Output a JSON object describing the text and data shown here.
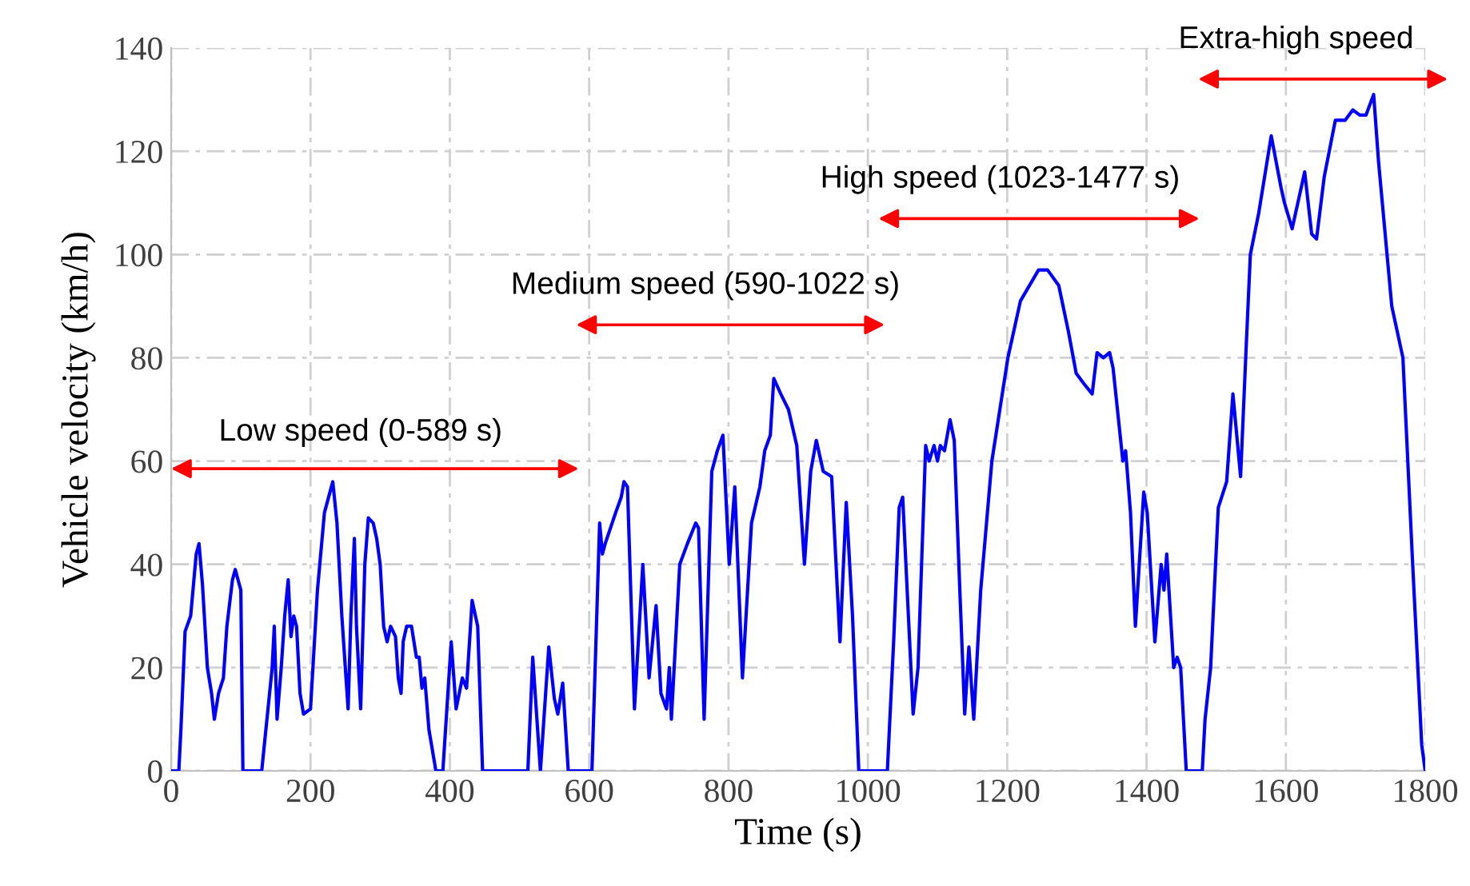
{
  "chart_data": {
    "type": "line",
    "xlabel": "Time (s)",
    "ylabel": "Vehicle velocity (km/h)",
    "xlim": [
      0,
      1800
    ],
    "ylim": [
      0,
      140
    ],
    "xticks": [
      0,
      200,
      400,
      600,
      800,
      1000,
      1200,
      1400,
      1600,
      1800
    ],
    "yticks": [
      0,
      20,
      40,
      60,
      80,
      100,
      120,
      140
    ],
    "grid": true,
    "marker": "none",
    "line_style": "solid",
    "series": [
      {
        "color": "#0000ff",
        "x": [
          0,
          11,
          14,
          20,
          28,
          36,
          40,
          45,
          52,
          58,
          62,
          68,
          75,
          80,
          88,
          92,
          100,
          103,
          130,
          145,
          148,
          152,
          158,
          163,
          168,
          172,
          176,
          180,
          185,
          190,
          200,
          210,
          220,
          232,
          238,
          245,
          250,
          254,
          258,
          263,
          266,
          272,
          278,
          283,
          290,
          295,
          300,
          305,
          310,
          315,
          322,
          326,
          330,
          333,
          338,
          345,
          352,
          356,
          360,
          364,
          370,
          380,
          390,
          402,
          409,
          418,
          424,
          432,
          440,
          447,
          512,
          519,
          530,
          542,
          550,
          555,
          562,
          570,
          601,
          604,
          615,
          619,
          623,
          638,
          646,
          650,
          655,
          665,
          677,
          686,
          696,
          703,
          711,
          715,
          718,
          730,
          741,
          753,
          757,
          765,
          776,
          784,
          792,
          801,
          809,
          820,
          833,
          845,
          852,
          860,
          865,
          875,
          886,
          898,
          909,
          918,
          926,
          936,
          948,
          960,
          969,
          978,
          987,
          1028,
          1037,
          1045,
          1050,
          1065,
          1072,
          1083,
          1088,
          1095,
          1100,
          1104,
          1110,
          1114,
          1118,
          1124,
          1132,
          1139,
          1145,
          1152,
          1162,
          1178,
          1201,
          1219,
          1245,
          1258,
          1274,
          1288,
          1299,
          1310,
          1322,
          1329,
          1338,
          1347,
          1352,
          1366,
          1370,
          1377,
          1384,
          1396,
          1401,
          1412,
          1421,
          1425,
          1429,
          1439,
          1444,
          1449,
          1457,
          1480,
          1484,
          1492,
          1503,
          1515,
          1524,
          1535,
          1543,
          1549,
          1561,
          1579,
          1593,
          1598,
          1609,
          1627,
          1637,
          1644,
          1655,
          1671,
          1685,
          1696,
          1706,
          1715,
          1726,
          1733,
          1752,
          1768,
          1782,
          1795,
          1800
        ],
        "values": [
          0,
          0,
          8,
          27,
          30,
          42,
          44,
          36,
          20,
          15,
          10,
          15,
          18,
          28,
          37,
          39,
          35,
          0,
          0,
          20,
          28,
          10,
          20,
          30,
          37,
          26,
          30,
          28,
          15,
          11,
          12,
          35,
          50,
          56,
          48,
          30,
          20,
          12,
          30,
          45,
          28,
          12,
          40,
          49,
          48,
          45,
          40,
          28,
          25,
          28,
          26,
          18,
          15,
          25,
          28,
          28,
          22,
          22,
          16,
          18,
          8,
          0,
          0,
          25,
          12,
          18,
          16,
          33,
          28,
          0,
          0,
          22,
          0,
          24,
          14,
          11,
          17,
          0,
          0,
          0,
          48,
          42,
          44,
          50,
          53,
          56,
          55,
          12,
          40,
          18,
          32,
          15,
          12,
          20,
          10,
          40,
          44,
          48,
          47,
          10,
          58,
          62,
          65,
          40,
          55,
          18,
          48,
          55,
          62,
          65,
          76,
          73,
          70,
          63,
          40,
          58,
          64,
          58,
          57,
          25,
          52,
          30,
          0,
          0,
          25,
          51,
          53,
          11,
          20,
          63,
          60,
          63,
          60,
          63,
          62,
          65,
          68,
          64,
          35,
          11,
          24,
          10,
          35,
          60,
          80,
          91,
          97,
          97,
          94,
          85,
          77,
          75,
          73,
          81,
          80,
          81,
          78,
          60,
          62,
          50,
          28,
          54,
          50,
          25,
          40,
          35,
          42,
          20,
          22,
          20,
          0,
          0,
          10,
          20,
          51,
          56,
          73,
          57,
          82,
          100,
          108,
          123,
          113,
          110,
          105,
          116,
          104,
          103,
          115,
          126,
          126,
          128,
          127,
          127,
          131,
          118,
          90,
          80,
          40,
          5,
          0
        ]
      }
    ],
    "annotations": [
      "Low speed (0-589 s)",
      "Medium speed (590-1022 s)",
      "High speed (1023-1477 s)",
      "Extra-high speed"
    ]
  }
}
